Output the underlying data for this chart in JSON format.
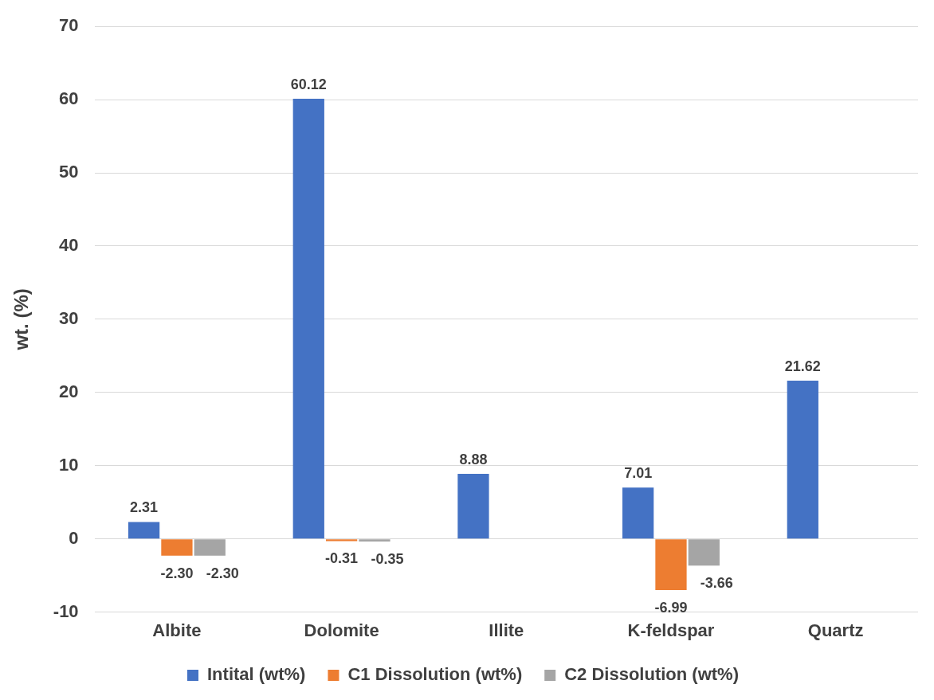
{
  "chart_data": {
    "type": "bar",
    "ylabel": "wt. (%)",
    "categories": [
      "Albite",
      "Dolomite",
      "Illite",
      "K-feldspar",
      "Quartz"
    ],
    "series": [
      {
        "name": "Intital (wt%)",
        "color": "#4472c4",
        "values": [
          2.31,
          60.12,
          8.88,
          7.01,
          21.62
        ],
        "value_labels": [
          "2.31",
          "60.12",
          "8.88",
          "7.01",
          "21.62"
        ]
      },
      {
        "name": "C1 Dissolution (wt%)",
        "color": "#ed7d31",
        "values": [
          -2.3,
          -0.31,
          null,
          -6.99,
          null
        ],
        "value_labels": [
          "-2.30",
          "-0.31",
          null,
          "-6.99",
          null
        ]
      },
      {
        "name": "C2 Dissolution (wt%)",
        "color": "#a5a5a5",
        "values": [
          -2.3,
          -0.35,
          null,
          -3.66,
          null
        ],
        "value_labels": [
          "-2.30",
          "-0.35",
          null,
          "-3.66",
          null
        ]
      }
    ],
    "ylim": [
      -10,
      70
    ],
    "yticks": [
      -10,
      0,
      10,
      20,
      30,
      40,
      50,
      60,
      70
    ],
    "grid": "y",
    "legend": "bottom"
  }
}
